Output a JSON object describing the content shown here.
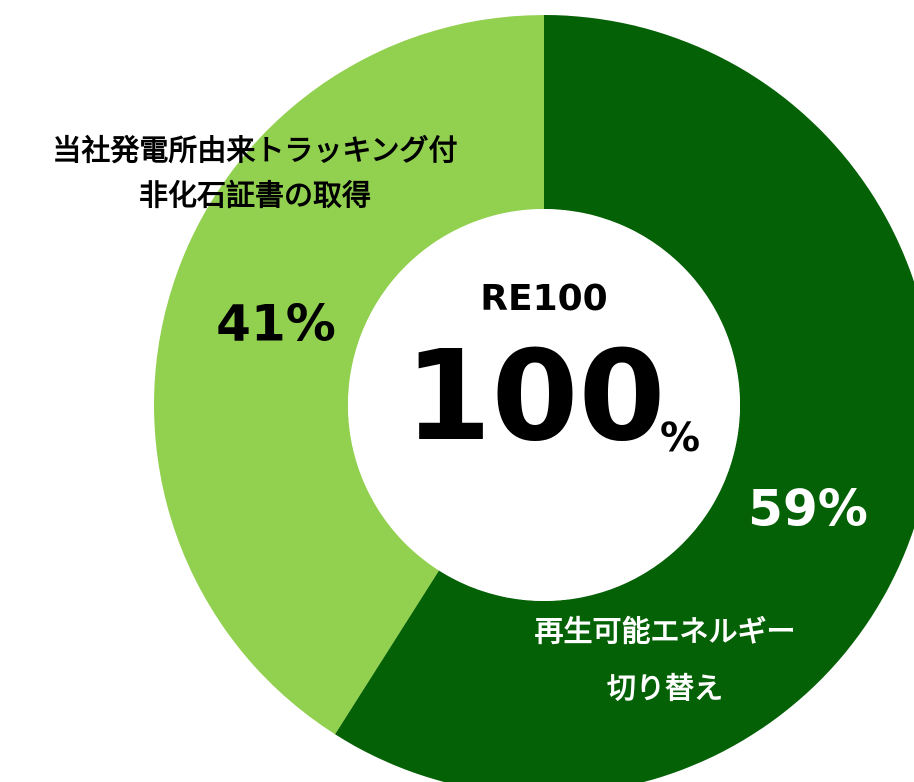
{
  "chart_data": {
    "type": "donut",
    "categories": [
      [
        "再生可能エネルギー",
        "切り替え"
      ],
      [
        "当社発電所由来トラッキング付",
        "非化石証書の取得"
      ]
    ],
    "values": [
      59,
      41
    ],
    "value_labels": [
      "59%",
      "41%"
    ],
    "colors": [
      "#056105",
      "#92d050"
    ],
    "center": {
      "title": "RE100",
      "value": 100,
      "unit": "%"
    }
  }
}
